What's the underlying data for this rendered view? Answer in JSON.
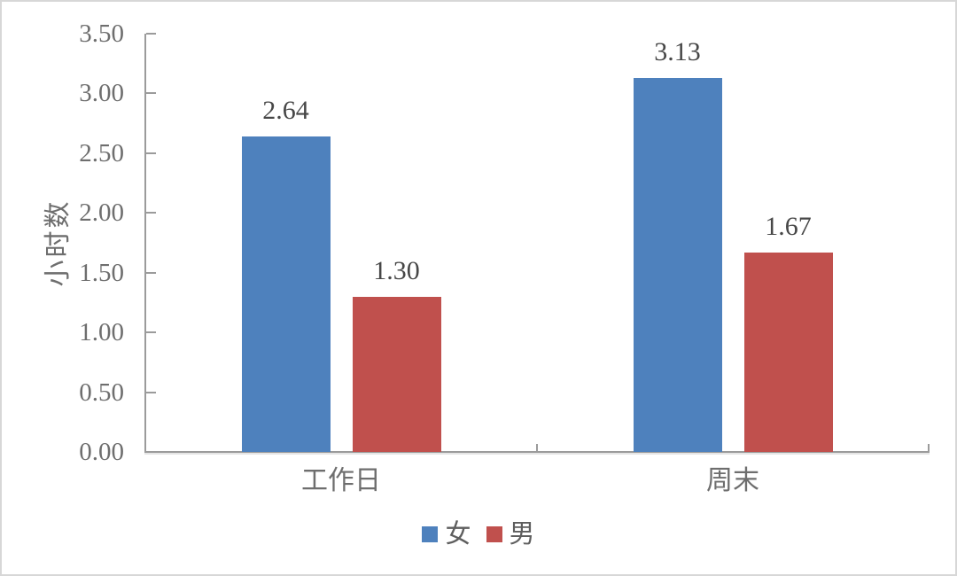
{
  "chart_data": {
    "type": "bar",
    "title": "",
    "xlabel": "",
    "ylabel": "小时数",
    "categories": [
      "工作日",
      "周末"
    ],
    "series": [
      {
        "name": "女",
        "color": "#4e81bd",
        "values": [
          2.64,
          3.13
        ],
        "data_labels": [
          "2.64",
          "3.13"
        ]
      },
      {
        "name": "男",
        "color": "#c0504d",
        "values": [
          1.3,
          1.67
        ],
        "data_labels": [
          "1.30",
          "1.67"
        ]
      }
    ],
    "ylim": [
      0,
      3.5
    ],
    "ytick_step": 0.5,
    "ytick_labels": [
      "0.00",
      "0.50",
      "1.00",
      "1.50",
      "2.00",
      "2.50",
      "3.00",
      "3.50"
    ],
    "grid": false,
    "legend_position": "bottom"
  },
  "colors": {
    "female_bar": "#4e81bd",
    "male_bar": "#c0504d",
    "axis_line": "#9b9b9b",
    "tick_label_text": "#6e6e6e",
    "data_label_text": "#474747",
    "legend_text": "#5e5e5e",
    "frame_border": "#d7d7d7",
    "background": "#ffffff"
  }
}
